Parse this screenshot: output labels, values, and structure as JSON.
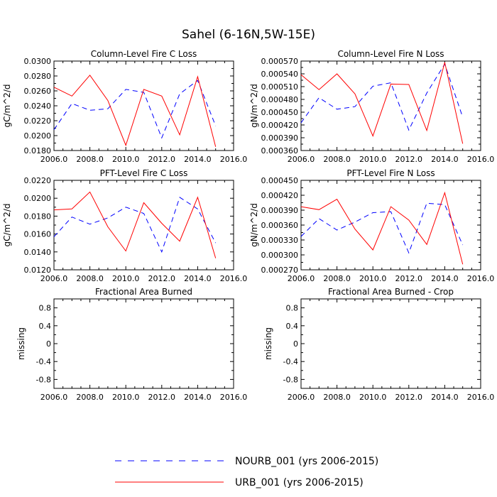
{
  "figure": {
    "title": "Sahel (6-16N,5W-15E)"
  },
  "colors": {
    "nourb": "#0000ff",
    "urb": "#ff0000",
    "axis": "#000000"
  },
  "legend": {
    "entries": [
      {
        "label": "NOURB_001 (yrs 2006-2015)",
        "style": "dashed",
        "color": "#0000ff"
      },
      {
        "label": "URB_001 (yrs 2006-2015)",
        "style": "solid",
        "color": "#ff0000"
      }
    ]
  },
  "chart_data": [
    {
      "type": "line",
      "title": "Column-Level Fire C Loss",
      "xlabel": "",
      "ylabel": "gC/m^2/d",
      "xlim": [
        2006,
        2016
      ],
      "ylim": [
        0.018,
        0.03
      ],
      "xticks": [
        "2006.0",
        "2008.0",
        "2010.0",
        "2012.0",
        "2014.0",
        "2016.0"
      ],
      "yticks": [
        "0.0180",
        "0.0200",
        "0.0220",
        "0.0240",
        "0.0260",
        "0.0280",
        "0.0300"
      ],
      "x": [
        2006,
        2007,
        2008,
        2009,
        2010,
        2011,
        2012,
        2013,
        2014,
        2015
      ],
      "series": [
        {
          "name": "NOURB_001 (yrs 2006-2015)",
          "style": "dashed",
          "values": [
            0.0208,
            0.0243,
            0.0234,
            0.0236,
            0.0262,
            0.0258,
            0.0197,
            0.0256,
            0.0274,
            0.0213
          ]
        },
        {
          "name": "URB_001 (yrs 2006-2015)",
          "style": "solid",
          "values": [
            0.0265,
            0.0253,
            0.0281,
            0.0247,
            0.0187,
            0.0262,
            0.0253,
            0.0201,
            0.0279,
            0.0185
          ]
        }
      ]
    },
    {
      "type": "line",
      "title": "Column-Level Fire N Loss",
      "xlabel": "",
      "ylabel": "gN/m^2/d",
      "xlim": [
        2006,
        2016
      ],
      "ylim": [
        0.00036,
        0.00057
      ],
      "xticks": [
        "2006.0",
        "2008.0",
        "2010.0",
        "2012.0",
        "2014.0",
        "2016.0"
      ],
      "yticks": [
        "0.000360",
        "0.000390",
        "0.000420",
        "0.000450",
        "0.000480",
        "0.000510",
        "0.000540",
        "0.000570"
      ],
      "x": [
        2006,
        2007,
        2008,
        2009,
        2010,
        2011,
        2012,
        2013,
        2014,
        2015
      ],
      "series": [
        {
          "name": "NOURB_001 (yrs 2006-2015)",
          "style": "dashed",
          "values": [
            0.000425,
            0.000484,
            0.000457,
            0.000463,
            0.000511,
            0.000519,
            0.000408,
            0.000495,
            0.000563,
            0.000438
          ]
        },
        {
          "name": "URB_001 (yrs 2006-2015)",
          "style": "solid",
          "values": [
            0.000538,
            0.000503,
            0.00054,
            0.000493,
            0.000394,
            0.000516,
            0.000515,
            0.000407,
            0.000567,
            0.000376
          ]
        }
      ]
    },
    {
      "type": "line",
      "title": "PFT-Level Fire C Loss",
      "xlabel": "",
      "ylabel": "gC/m^2/d",
      "xlim": [
        2006,
        2016
      ],
      "ylim": [
        0.012,
        0.022
      ],
      "xticks": [
        "2006.0",
        "2008.0",
        "2010.0",
        "2012.0",
        "2014.0",
        "2016.0"
      ],
      "yticks": [
        "0.0120",
        "0.0140",
        "0.0160",
        "0.0180",
        "0.0200",
        "0.0220"
      ],
      "x": [
        2006,
        2007,
        2008,
        2009,
        2010,
        2011,
        2012,
        2013,
        2014,
        2015
      ],
      "series": [
        {
          "name": "NOURB_001 (yrs 2006-2015)",
          "style": "dashed",
          "values": [
            0.0157,
            0.0179,
            0.0171,
            0.0178,
            0.019,
            0.0183,
            0.014,
            0.0201,
            0.0188,
            0.015
          ]
        },
        {
          "name": "URB_001 (yrs 2006-2015)",
          "style": "solid",
          "values": [
            0.0187,
            0.0188,
            0.0207,
            0.0168,
            0.0141,
            0.0195,
            0.0172,
            0.0152,
            0.0201,
            0.0133
          ]
        }
      ]
    },
    {
      "type": "line",
      "title": "PFT-Level Fire N Loss",
      "xlabel": "",
      "ylabel": "gN/m^2/d",
      "xlim": [
        2006,
        2016
      ],
      "ylim": [
        0.00027,
        0.00045
      ],
      "xticks": [
        "2006.0",
        "2008.0",
        "2010.0",
        "2012.0",
        "2014.0",
        "2016.0"
      ],
      "yticks": [
        "0.000270",
        "0.000300",
        "0.000330",
        "0.000360",
        "0.000390",
        "0.000420",
        "0.000450"
      ],
      "x": [
        2006,
        2007,
        2008,
        2009,
        2010,
        2011,
        2012,
        2013,
        2014,
        2015
      ],
      "series": [
        {
          "name": "NOURB_001 (yrs 2006-2015)",
          "style": "dashed",
          "values": [
            0.000337,
            0.000373,
            0.00035,
            0.000366,
            0.000385,
            0.000387,
            0.000304,
            0.000404,
            0.000401,
            0.00032
          ]
        },
        {
          "name": "URB_001 (yrs 2006-2015)",
          "style": "solid",
          "values": [
            0.000397,
            0.000391,
            0.000412,
            0.000352,
            0.00031,
            0.000397,
            0.00037,
            0.000321,
            0.000425,
            0.000281
          ]
        }
      ]
    },
    {
      "type": "line",
      "title": "Fractional Area Burned",
      "xlabel": "",
      "ylabel": "missing",
      "xlim": [
        2006,
        2016
      ],
      "ylim": [
        -1,
        1
      ],
      "xticks": [
        "2006.0",
        "2008.0",
        "2010.0",
        "2012.0",
        "2014.0",
        "2016.0"
      ],
      "yticks": [
        "-0.8",
        "-0.4",
        "0",
        "0.4",
        "0.8"
      ],
      "x": [],
      "series": []
    },
    {
      "type": "line",
      "title": "Fractional Area Burned - Crop",
      "xlabel": "",
      "ylabel": "missing",
      "xlim": [
        2006,
        2016
      ],
      "ylim": [
        -1,
        1
      ],
      "xticks": [
        "2006.0",
        "2008.0",
        "2010.0",
        "2012.0",
        "2014.0",
        "2016.0"
      ],
      "yticks": [
        "-0.8",
        "-0.4",
        "0",
        "0.4",
        "0.8"
      ],
      "x": [],
      "series": []
    }
  ]
}
